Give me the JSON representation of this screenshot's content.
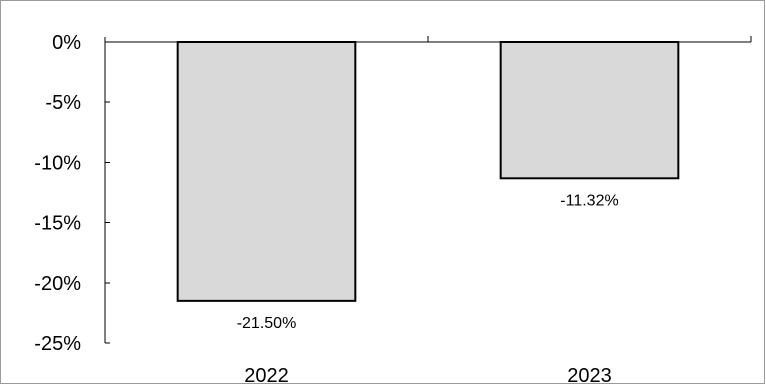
{
  "chart_data": {
    "type": "bar",
    "title": "",
    "xlabel": "",
    "ylabel": "",
    "categories": [
      "2022",
      "2023"
    ],
    "series": [
      {
        "values": [
          -21.5,
          -11.32
        ]
      }
    ],
    "data_labels": [
      "-21.50%",
      "-11.32%"
    ],
    "ylim": [
      -25,
      0
    ],
    "yticks": [
      0,
      -5,
      -10,
      -15,
      -20,
      -25
    ],
    "ytick_labels": [
      "0%",
      "-5%",
      "-10%",
      "-15%",
      "-20%",
      "-25%"
    ],
    "x_axis_position": "top",
    "grid": false,
    "legend": "none",
    "bar_fill": "#d9d9d9",
    "bar_stroke": "#000000"
  }
}
